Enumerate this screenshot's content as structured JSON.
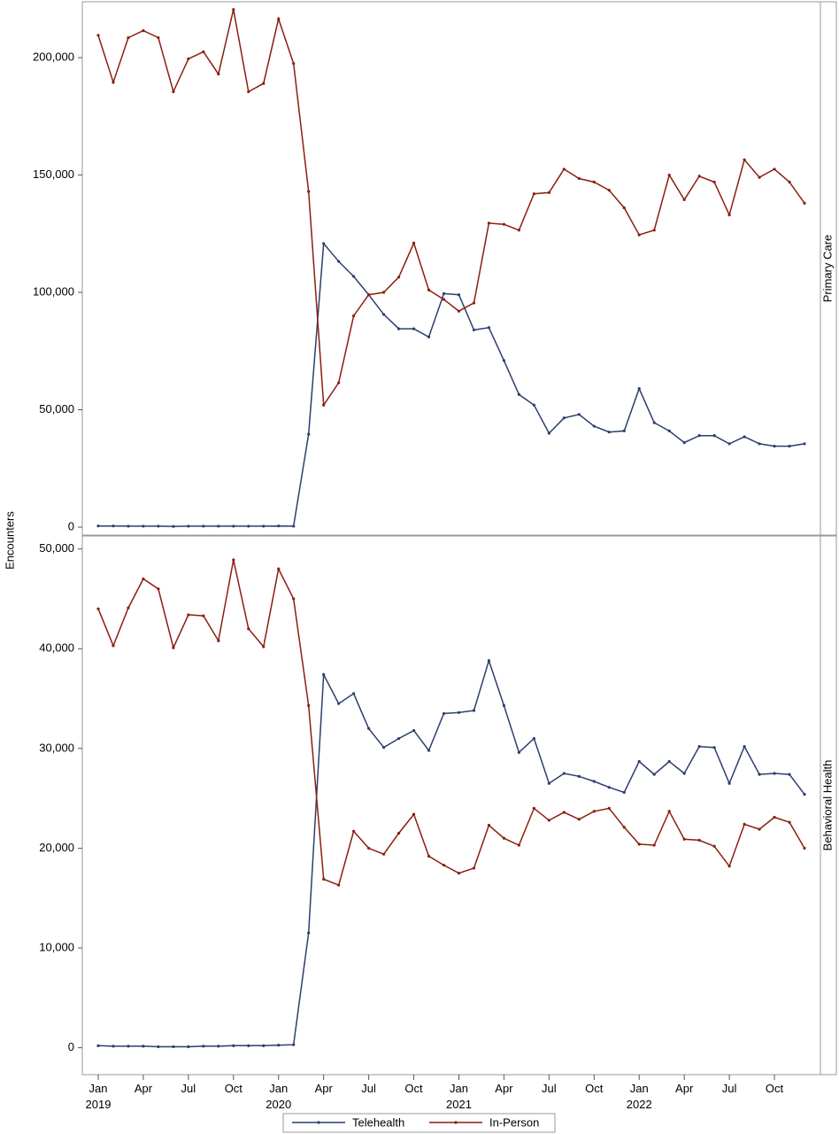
{
  "chart_data": {
    "type": "line",
    "y_label": "Encounters",
    "x": [
      "2019-01",
      "2019-02",
      "2019-03",
      "2019-04",
      "2019-05",
      "2019-06",
      "2019-07",
      "2019-08",
      "2019-09",
      "2019-10",
      "2019-11",
      "2019-12",
      "2020-01",
      "2020-02",
      "2020-03",
      "2020-04",
      "2020-05",
      "2020-06",
      "2020-07",
      "2020-08",
      "2020-09",
      "2020-10",
      "2020-11",
      "2020-12",
      "2021-01",
      "2021-02",
      "2021-03",
      "2021-04",
      "2021-05",
      "2021-06",
      "2021-07",
      "2021-08",
      "2021-09",
      "2021-10",
      "2021-11",
      "2021-12",
      "2022-01",
      "2022-02",
      "2022-03",
      "2022-04",
      "2022-05",
      "2022-06",
      "2022-07",
      "2022-08",
      "2022-09",
      "2022-10",
      "2022-11",
      "2022-12"
    ],
    "xticks": [
      {
        "value": "2019-01",
        "label": "Jan 2019"
      },
      {
        "value": "2019-04",
        "label": "Apr"
      },
      {
        "value": "2019-07",
        "label": "Jul"
      },
      {
        "value": "2019-10",
        "label": "Oct"
      },
      {
        "value": "2020-01",
        "label": "Jan 2020"
      },
      {
        "value": "2020-04",
        "label": "Apr"
      },
      {
        "value": "2020-07",
        "label": "Jul"
      },
      {
        "value": "2020-10",
        "label": "Oct"
      },
      {
        "value": "2021-01",
        "label": "Jan 2021"
      },
      {
        "value": "2021-04",
        "label": "Apr"
      },
      {
        "value": "2021-07",
        "label": "Jul"
      },
      {
        "value": "2021-10",
        "label": "Oct"
      },
      {
        "value": "2022-01",
        "label": "Jan 2022"
      },
      {
        "value": "2022-04",
        "label": "Apr"
      },
      {
        "value": "2022-07",
        "label": "Jul"
      },
      {
        "value": "2022-10",
        "label": "Oct"
      }
    ],
    "panels": [
      {
        "label": "Primary Care",
        "ylim": [
          -3400,
          223800
        ],
        "yticks": [
          0,
          {
            "value": 50000,
            "label": "50,000"
          },
          {
            "value": 100000,
            "label": "100,000"
          },
          {
            "value": 150000,
            "label": "150,000"
          },
          {
            "value": 200000,
            "label": "200,000"
          }
        ],
        "series": [
          {
            "name": "Telehealth",
            "color": "#2c3e6e",
            "values": [
              500,
              500,
              400,
              400,
              400,
              300,
              400,
              400,
              400,
              400,
              400,
              400,
              500,
              400,
              39600,
              120800,
              113200,
              106800,
              99000,
              90600,
              84500,
              84500,
              81000,
              99500,
              99000,
              84000,
              85000,
              71000,
              56500,
              52000,
              40000,
              46500,
              48000,
              43000,
              40500,
              41000,
              59000,
              44500,
              41000,
              36000,
              39000,
              39000,
              35500,
              38500,
              35500,
              34500,
              34500,
              35500
            ]
          },
          {
            "name": "In-Person",
            "color": "#8b1e0e",
            "values": [
              209500,
              189500,
              208500,
              211500,
              208500,
              185500,
              199500,
              202500,
              193000,
              220500,
              185500,
              189000,
              216500,
              197500,
              143000,
              52000,
              61500,
              90000,
              99000,
              100000,
              106500,
              121000,
              101000,
              97000,
              92000,
              95500,
              129500,
              129000,
              126500,
              142000,
              142500,
              152500,
              148500,
              147000,
              143500,
              136000,
              124500,
              126500,
              150000,
              139500,
              149500,
              147000,
              133000,
              156500,
              149000,
              152500,
              147000,
              138000
            ]
          }
        ]
      },
      {
        "label": "Behavioral Health",
        "ylim": [
          -2700,
          51300
        ],
        "yticks": [
          0,
          {
            "value": 10000,
            "label": "10,000"
          },
          {
            "value": 20000,
            "label": "20,000"
          },
          {
            "value": 30000,
            "label": "30,000"
          },
          {
            "value": 40000,
            "label": "40,000"
          },
          {
            "value": 50000,
            "label": "50,000"
          }
        ],
        "series": [
          {
            "name": "Telehealth",
            "color": "#2c3e6e",
            "values": [
              200,
              150,
              150,
              150,
              100,
              100,
              100,
              150,
              150,
              200,
              200,
              200,
              250,
              300,
              11500,
              37400,
              34500,
              35500,
              32000,
              30100,
              31000,
              31800,
              29800,
              33500,
              33600,
              33800,
              38800,
              34300,
              29600,
              31000,
              26500,
              27500,
              27200,
              26700,
              26100,
              25600,
              28700,
              27400,
              28700,
              27500,
              30200,
              30100,
              26500,
              30200,
              27400,
              27500,
              27400,
              25400
            ]
          },
          {
            "name": "In-Person",
            "color": "#8b1e0e",
            "values": [
              44000,
              40300,
              44100,
              47000,
              46000,
              40100,
              43400,
              43300,
              40800,
              48900,
              42000,
              40200,
              48000,
              45000,
              34300,
              16900,
              16300,
              21700,
              20000,
              19400,
              21500,
              23400,
              19200,
              18300,
              17500,
              18000,
              22300,
              21000,
              20300,
              24000,
              22800,
              23600,
              22900,
              23700,
              24000,
              22100,
              20400,
              20300,
              23700,
              20900,
              20800,
              20200,
              18200,
              22400,
              21900,
              23100,
              22600,
              20000
            ]
          }
        ]
      }
    ]
  }
}
